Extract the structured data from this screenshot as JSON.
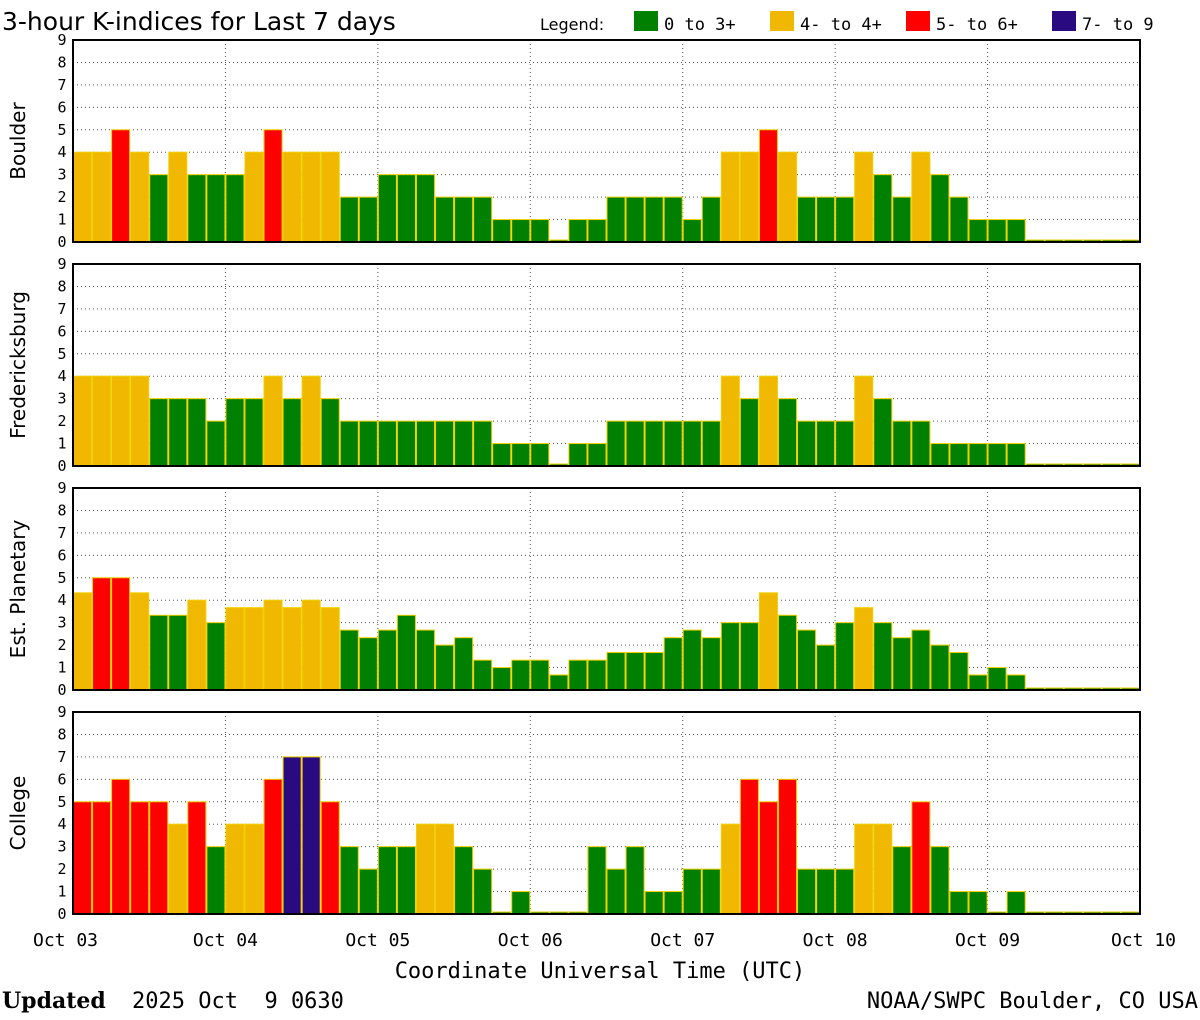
{
  "chart_data": {
    "type": "bar",
    "title": "3-hour K-indices for Last 7 days",
    "legend": {
      "heading": "Legend:",
      "position": "top-right",
      "entries": [
        {
          "label": "0 to 3+",
          "color": "#008000"
        },
        {
          "label": "4- to 4+",
          "color": "#f0b800"
        },
        {
          "label": "5- to 6+",
          "color": "#ff0000"
        },
        {
          "label": "7- to 9",
          "color": "#2a0a80"
        }
      ]
    },
    "x_ticks": [
      "Oct 03",
      "Oct 04",
      "Oct 05",
      "Oct 06",
      "Oct 07",
      "Oct 08",
      "Oct 09",
      "Oct 10"
    ],
    "xlabel": "Coordinate Universal Time (UTC)",
    "y_ticks": [
      "0",
      "1",
      "2",
      "3",
      "4",
      "5",
      "6",
      "7",
      "8",
      "9"
    ],
    "ylim": [
      0,
      9
    ],
    "bars_per_day": 8,
    "grid": true,
    "panels": [
      {
        "name": "Boulder",
        "values": [
          4,
          4,
          5,
          4,
          3,
          4,
          3,
          3,
          3,
          4,
          5,
          4,
          4,
          4,
          2,
          2,
          3,
          3,
          3,
          2,
          2,
          2,
          1,
          1,
          1,
          0,
          1,
          1,
          2,
          2,
          2,
          2,
          1,
          2,
          4,
          4,
          5,
          4,
          2,
          2,
          2,
          4,
          3,
          2,
          4,
          3,
          2,
          1,
          1,
          1,
          0,
          0,
          0,
          0,
          0,
          0
        ]
      },
      {
        "name": "Fredericksburg",
        "values": [
          4,
          4,
          4,
          4,
          3,
          3,
          3,
          2,
          3,
          3,
          4,
          3,
          4,
          3,
          2,
          2,
          2,
          2,
          2,
          2,
          2,
          2,
          1,
          1,
          1,
          0,
          1,
          1,
          2,
          2,
          2,
          2,
          2,
          2,
          4,
          3,
          4,
          3,
          2,
          2,
          2,
          4,
          3,
          2,
          2,
          1,
          1,
          1,
          1,
          1,
          0,
          0,
          0,
          0,
          0,
          0
        ]
      },
      {
        "name": "Est. Planetary",
        "values": [
          4.33,
          5,
          5,
          4.33,
          3.33,
          3.33,
          4,
          3,
          3.67,
          3.67,
          4,
          3.67,
          4,
          3.67,
          2.67,
          2.33,
          2.67,
          3.33,
          2.67,
          2,
          2.33,
          1.33,
          1,
          1.33,
          1.33,
          0.67,
          1.33,
          1.33,
          1.67,
          1.67,
          1.67,
          2.33,
          2.67,
          2.33,
          3,
          3,
          4.33,
          3.33,
          2.67,
          2,
          3,
          3.67,
          3,
          2.33,
          2.67,
          2,
          1.67,
          0.67,
          1,
          0.67,
          0,
          0,
          0,
          0,
          0,
          0
        ]
      },
      {
        "name": "College",
        "values": [
          5,
          5,
          6,
          5,
          5,
          4,
          5,
          3,
          4,
          4,
          6,
          7,
          7,
          5,
          3,
          2,
          3,
          3,
          4,
          4,
          3,
          2,
          0,
          1,
          0,
          0,
          0,
          3,
          2,
          3,
          1,
          1,
          2,
          2,
          4,
          6,
          5,
          6,
          2,
          2,
          2,
          4,
          4,
          3,
          5,
          3,
          1,
          1,
          0,
          1,
          0,
          0,
          0,
          0,
          0,
          0
        ]
      }
    ]
  },
  "footer": {
    "updated_label": "Updated",
    "updated_value": "2025 Oct  9 0630",
    "source": "NOAA/SWPC Boulder, CO USA"
  }
}
